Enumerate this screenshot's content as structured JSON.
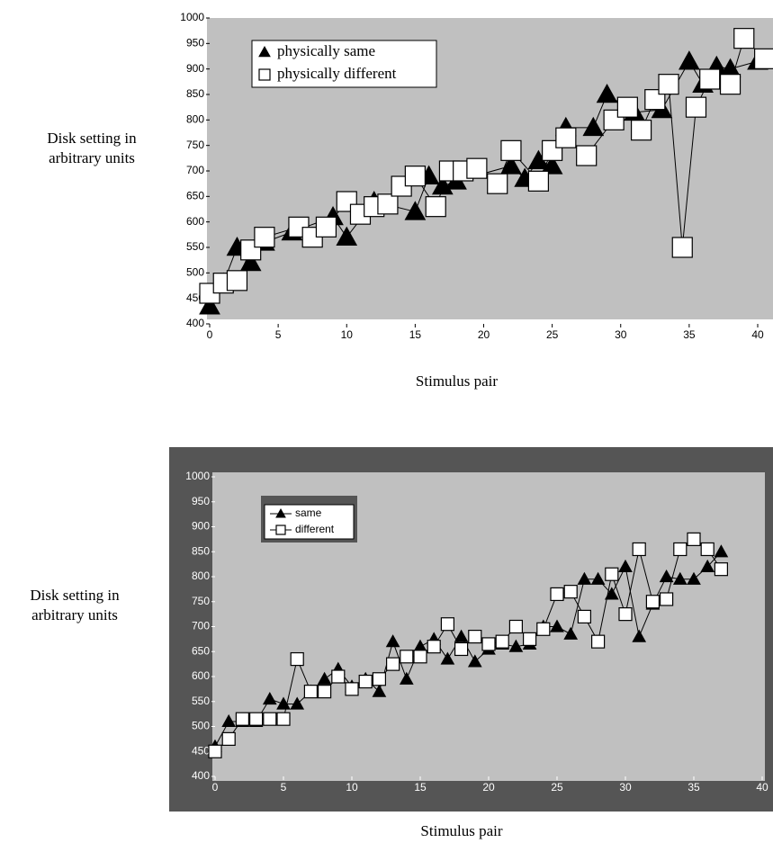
{
  "chart_data": [
    {
      "type": "line",
      "xlabel": "Stimulus pair",
      "ylabel": [
        "Disk setting in",
        "arbitrary units"
      ],
      "xlim": [
        0,
        40
      ],
      "ylim": [
        400,
        1000
      ],
      "xticks": [
        0,
        5,
        10,
        15,
        20,
        25,
        30,
        35,
        40
      ],
      "yticks": [
        400,
        450,
        500,
        550,
        600,
        650,
        700,
        750,
        800,
        850,
        900,
        950,
        1000
      ],
      "series": [
        {
          "name": "physically same",
          "marker": "triangle",
          "color": "#000000",
          "x": [
            0,
            1,
            2,
            3,
            4,
            6,
            9,
            10,
            12,
            15,
            16,
            17,
            18,
            22,
            23,
            24,
            25,
            26,
            28,
            29,
            31,
            33,
            35,
            36,
            37,
            38,
            40
          ],
          "values": [
            435,
            480,
            550,
            520,
            560,
            580,
            610,
            570,
            640,
            620,
            690,
            670,
            680,
            710,
            685,
            720,
            710,
            785,
            785,
            850,
            815,
            820,
            915,
            870,
            905,
            900,
            915
          ]
        },
        {
          "name": "physically different",
          "marker": "square",
          "color": "#ffffff",
          "x": [
            0,
            1,
            2,
            3,
            4,
            6.5,
            7.5,
            8.5,
            10,
            11,
            12,
            13,
            14,
            15,
            16.5,
            17.5,
            18.5,
            19.5,
            21,
            22,
            24,
            25,
            26,
            27.5,
            29.5,
            30.5,
            31.5,
            32.5,
            33.5,
            34.5,
            35.5,
            36.5,
            38,
            39,
            40.5
          ],
          "values": [
            460,
            480,
            485,
            545,
            570,
            590,
            570,
            590,
            640,
            615,
            630,
            635,
            670,
            690,
            630,
            700,
            700,
            705,
            675,
            740,
            680,
            740,
            765,
            730,
            800,
            825,
            780,
            840,
            870,
            550,
            825,
            880,
            870,
            960,
            920
          ]
        }
      ]
    },
    {
      "type": "line",
      "xlabel": "Stimulus pair",
      "ylabel": [
        "Disk setting in",
        "arbitrary units"
      ],
      "xlim": [
        0,
        40
      ],
      "ylim": [
        400,
        1000
      ],
      "xticks": [
        0,
        5,
        10,
        15,
        20,
        25,
        30,
        35,
        40
      ],
      "yticks": [
        400,
        450,
        500,
        550,
        600,
        650,
        700,
        750,
        800,
        850,
        900,
        950,
        1000
      ],
      "series": [
        {
          "name": "same",
          "marker": "triangle",
          "color": "#000000",
          "x": [
            0,
            1,
            2,
            3,
            4,
            5,
            6,
            7,
            8,
            9,
            10,
            11,
            12,
            13,
            14,
            15,
            16,
            17,
            18,
            19,
            20,
            21,
            22,
            23,
            24,
            25,
            26,
            27,
            28,
            29,
            30,
            31,
            32,
            33,
            34,
            35,
            36,
            37
          ],
          "values": [
            460,
            510,
            510,
            510,
            555,
            545,
            545,
            570,
            595,
            615,
            580,
            595,
            570,
            670,
            595,
            660,
            675,
            635,
            680,
            630,
            655,
            665,
            660,
            665,
            700,
            700,
            685,
            795,
            795,
            765,
            820,
            680,
            745,
            800,
            795,
            795,
            820,
            850
          ]
        },
        {
          "name": "different",
          "marker": "square",
          "color": "#ffffff",
          "x": [
            0,
            1,
            2,
            3,
            4,
            5,
            6,
            7,
            8,
            9,
            10,
            11,
            12,
            13,
            14,
            15,
            16,
            17,
            18,
            19,
            20,
            21,
            22,
            23,
            24,
            25,
            26,
            27,
            28,
            29,
            30,
            31,
            32,
            33,
            34,
            35,
            36,
            37
          ],
          "values": [
            450,
            475,
            515,
            515,
            515,
            515,
            635,
            570,
            570,
            600,
            575,
            590,
            595,
            625,
            640,
            640,
            660,
            705,
            655,
            680,
            665,
            670,
            700,
            675,
            695,
            765,
            770,
            720,
            670,
            805,
            725,
            855,
            750,
            755,
            855,
            875,
            855,
            815
          ]
        }
      ]
    }
  ]
}
